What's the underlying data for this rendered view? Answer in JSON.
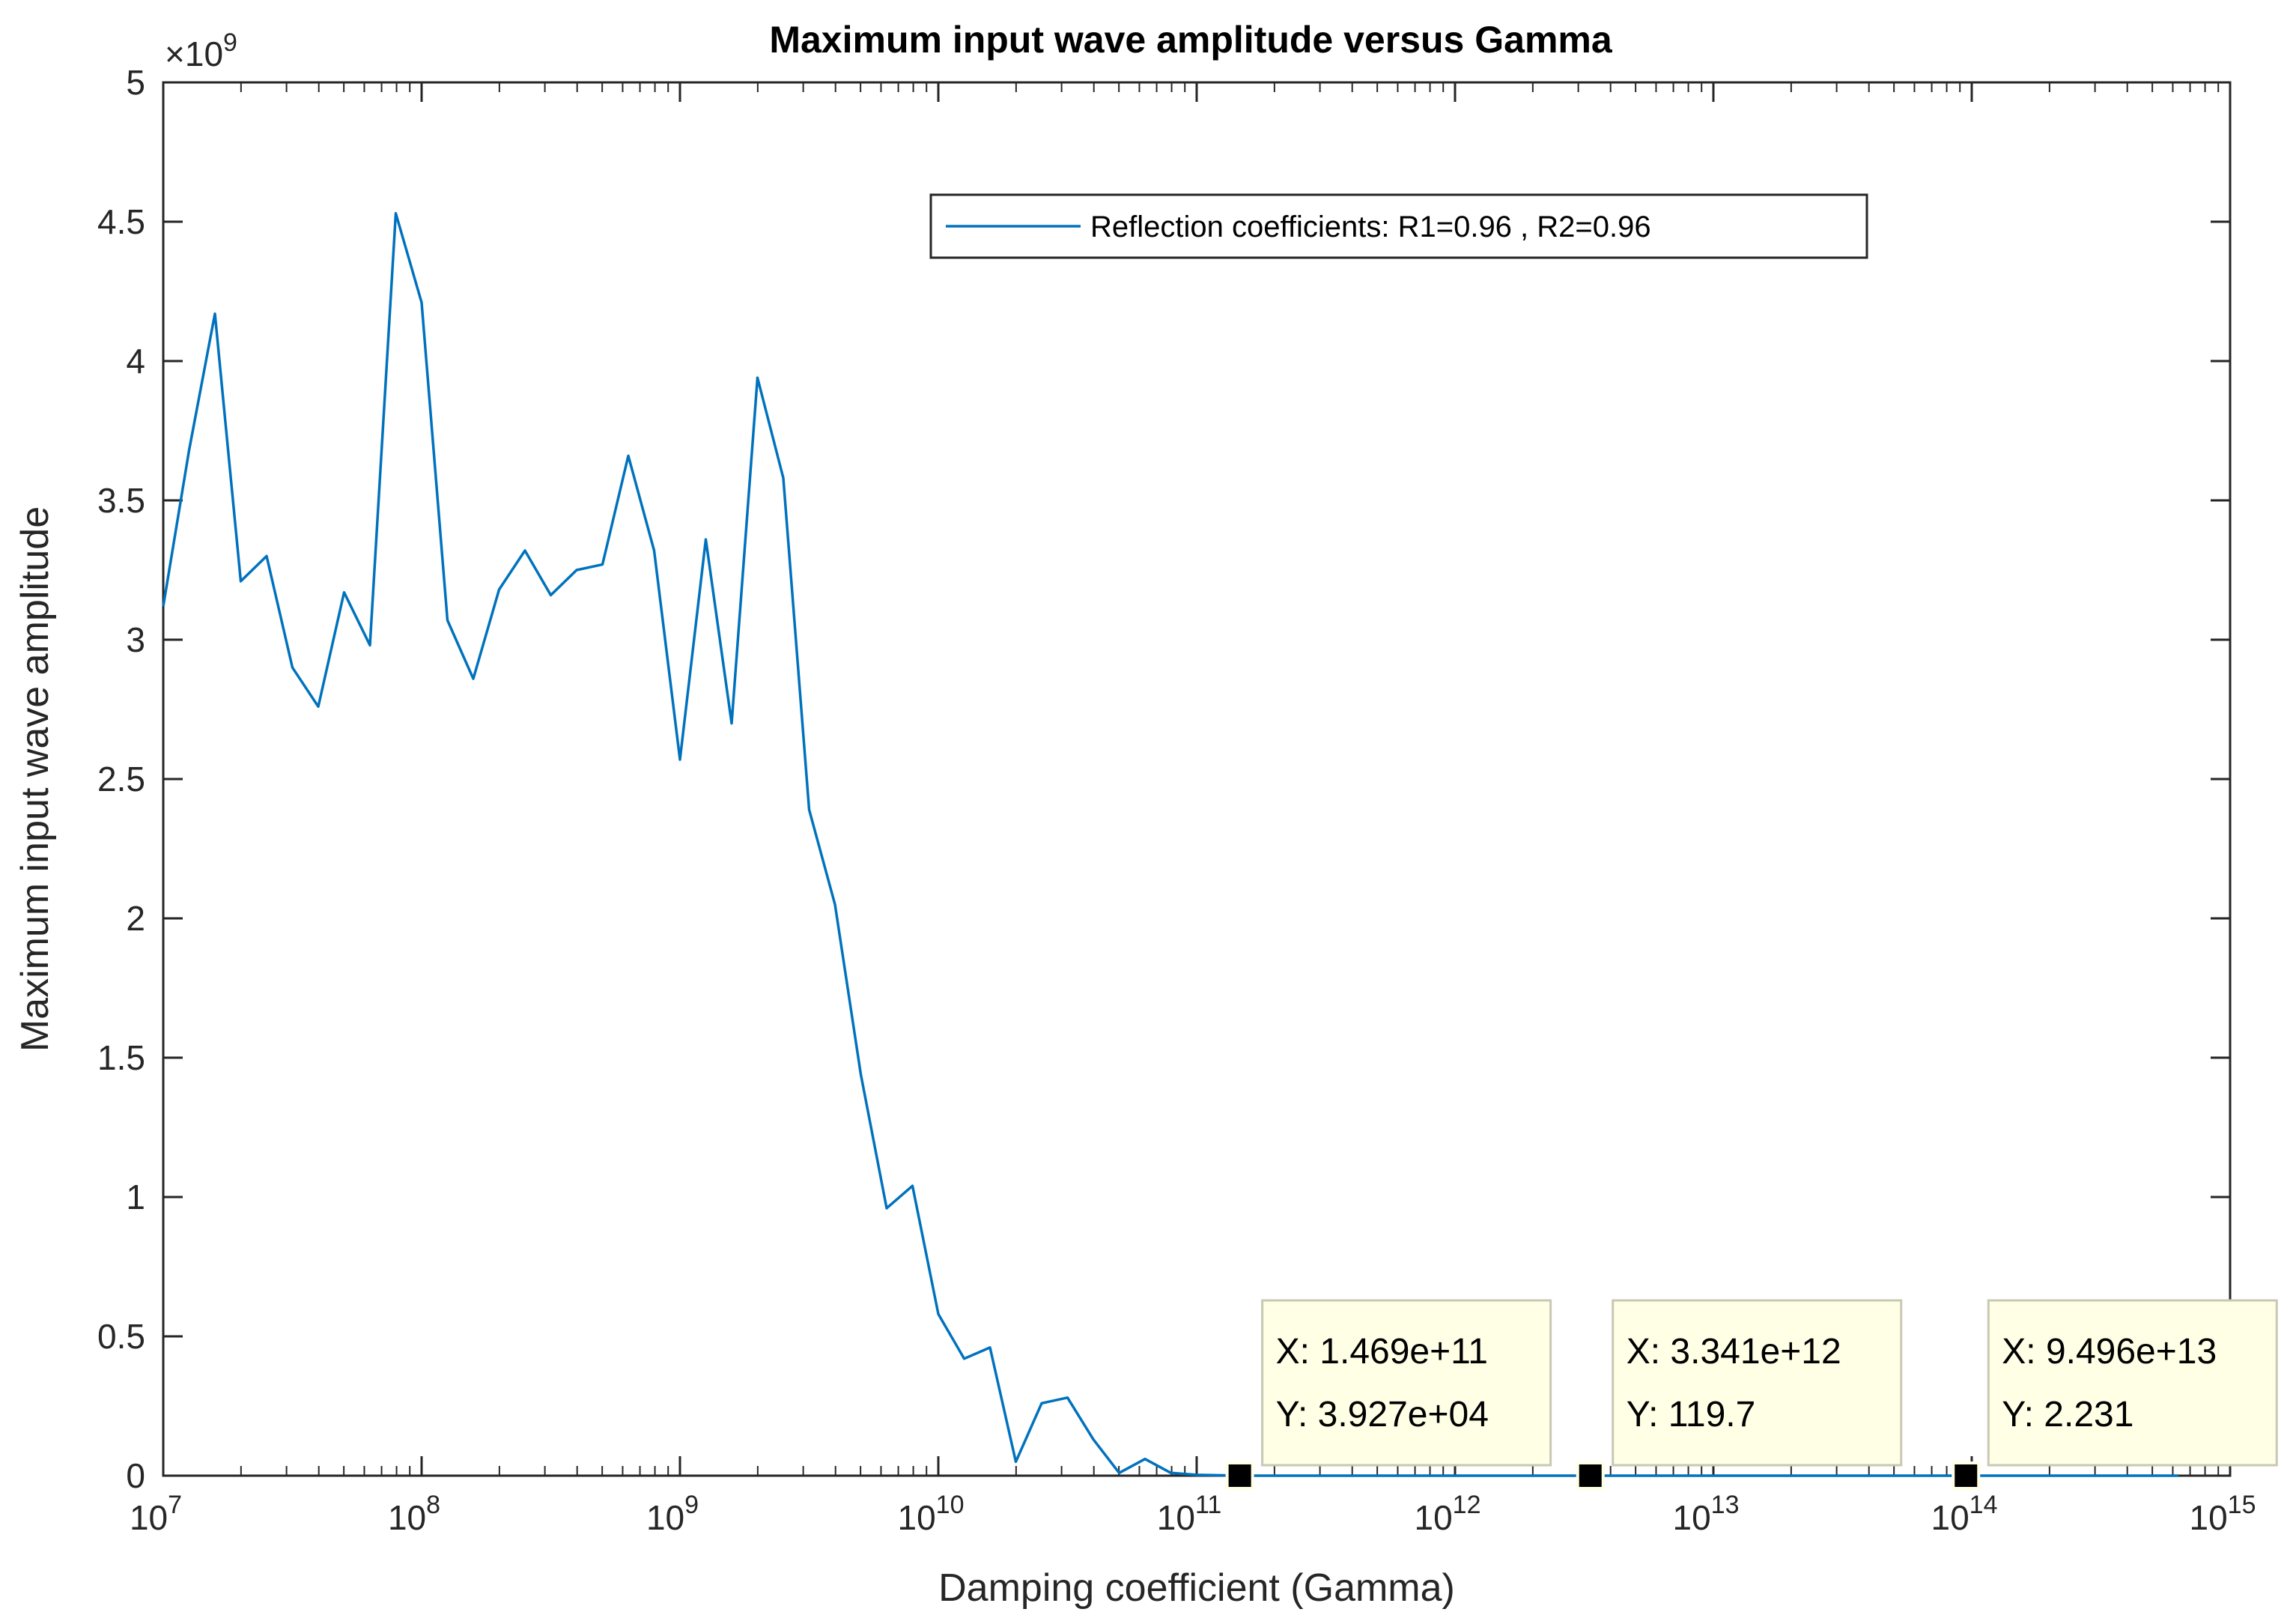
{
  "chart_data": {
    "type": "line",
    "title": "Maximum input wave amplitude versus Gamma",
    "xlabel": "Damping coefficient (Gamma)",
    "ylabel": "Maximum input wave amplitude",
    "xscale": "log",
    "xlim": [
      10000000.0,
      1000000000000000.0
    ],
    "ylim": [
      0,
      5000000000.0
    ],
    "y_exponent_label": "×10",
    "y_exponent": "9",
    "x_tick_base": "10",
    "x_ticks": [
      {
        "exp": "7",
        "value": 10000000.0
      },
      {
        "exp": "8",
        "value": 100000000.0
      },
      {
        "exp": "9",
        "value": 1000000000.0
      },
      {
        "exp": "10",
        "value": 10000000000.0
      },
      {
        "exp": "11",
        "value": 100000000000.0
      },
      {
        "exp": "12",
        "value": 1000000000000.0
      },
      {
        "exp": "13",
        "value": 10000000000000.0
      },
      {
        "exp": "14",
        "value": 100000000000000.0
      },
      {
        "exp": "15",
        "value": 1000000000000000.0
      }
    ],
    "y_ticks": [
      {
        "label": "0",
        "value": 0
      },
      {
        "label": "0.5",
        "value": 500000000.0
      },
      {
        "label": "1",
        "value": 1000000000.0
      },
      {
        "label": "1.5",
        "value": 1500000000.0
      },
      {
        "label": "2",
        "value": 2000000000.0
      },
      {
        "label": "2.5",
        "value": 2500000000.0
      },
      {
        "label": "3",
        "value": 3000000000.0
      },
      {
        "label": "3.5",
        "value": 3500000000.0
      },
      {
        "label": "4",
        "value": 4000000000.0
      },
      {
        "label": "4.5",
        "value": 4500000000.0
      },
      {
        "label": "5",
        "value": 5000000000.0
      }
    ],
    "legend": {
      "position": "top-right",
      "entry": "Reflection coefficients: R1=0.96 , R2=0.96"
    },
    "series": [
      {
        "name": "Reflection coefficients: R1=0.96 , R2=0.96",
        "color": "#0072BD",
        "log10_x": [
          7.0,
          7.1,
          7.2,
          7.3,
          7.4,
          7.5,
          7.6,
          7.7,
          7.8,
          7.9,
          8.0,
          8.1,
          8.2,
          8.3,
          8.4,
          8.5,
          8.6,
          8.7,
          8.8,
          8.9,
          9.0,
          9.1,
          9.2,
          9.3,
          9.4,
          9.5,
          9.6,
          9.7,
          9.8,
          9.9,
          10.0,
          10.1,
          10.2,
          10.3,
          10.4,
          10.5,
          10.6,
          10.7,
          10.8,
          10.9,
          11.0,
          11.167,
          11.5,
          12.0,
          12.524,
          13.0,
          13.5,
          13.977,
          14.5,
          14.8
        ],
        "values": [
          3120000000.0,
          3680000000.0,
          4170000000.0,
          3210000000.0,
          3300000000.0,
          2900000000.0,
          2760000000.0,
          3170000000.0,
          2980000000.0,
          4530000000.0,
          4210000000.0,
          3070000000.0,
          2860000000.0,
          3180000000.0,
          3320000000.0,
          3160000000.0,
          3250000000.0,
          3270000000.0,
          3660000000.0,
          3320000000.0,
          2570000000.0,
          3360000000.0,
          2700000000.0,
          3940000000.0,
          3580000000.0,
          2390000000.0,
          2050000000.0,
          1440000000.0,
          960000000.0,
          1040000000.0,
          580000000.0,
          420000000.0,
          460000000.0,
          50000000.0,
          260000000.0,
          280000000.0,
          130000000.0,
          10000000.0,
          60000000.0,
          10000000.0,
          3000000.0,
          39270,
          5000,
          1000,
          119.7,
          50,
          10,
          2.231,
          1,
          0.5
        ]
      }
    ],
    "datatips": [
      {
        "x_text": "X: 1.469e+11",
        "y_text": "Y: 3.927e+04",
        "x": 146900000000.0,
        "y": 39270
      },
      {
        "x_text": "X: 3.341e+12",
        "y_text": "Y: 119.7",
        "x": 3341000000000.0,
        "y": 119.7
      },
      {
        "x_text": "X: 9.496e+13",
        "y_text": "Y: 2.231",
        "x": 94960000000000.0,
        "y": 2.231
      }
    ]
  }
}
